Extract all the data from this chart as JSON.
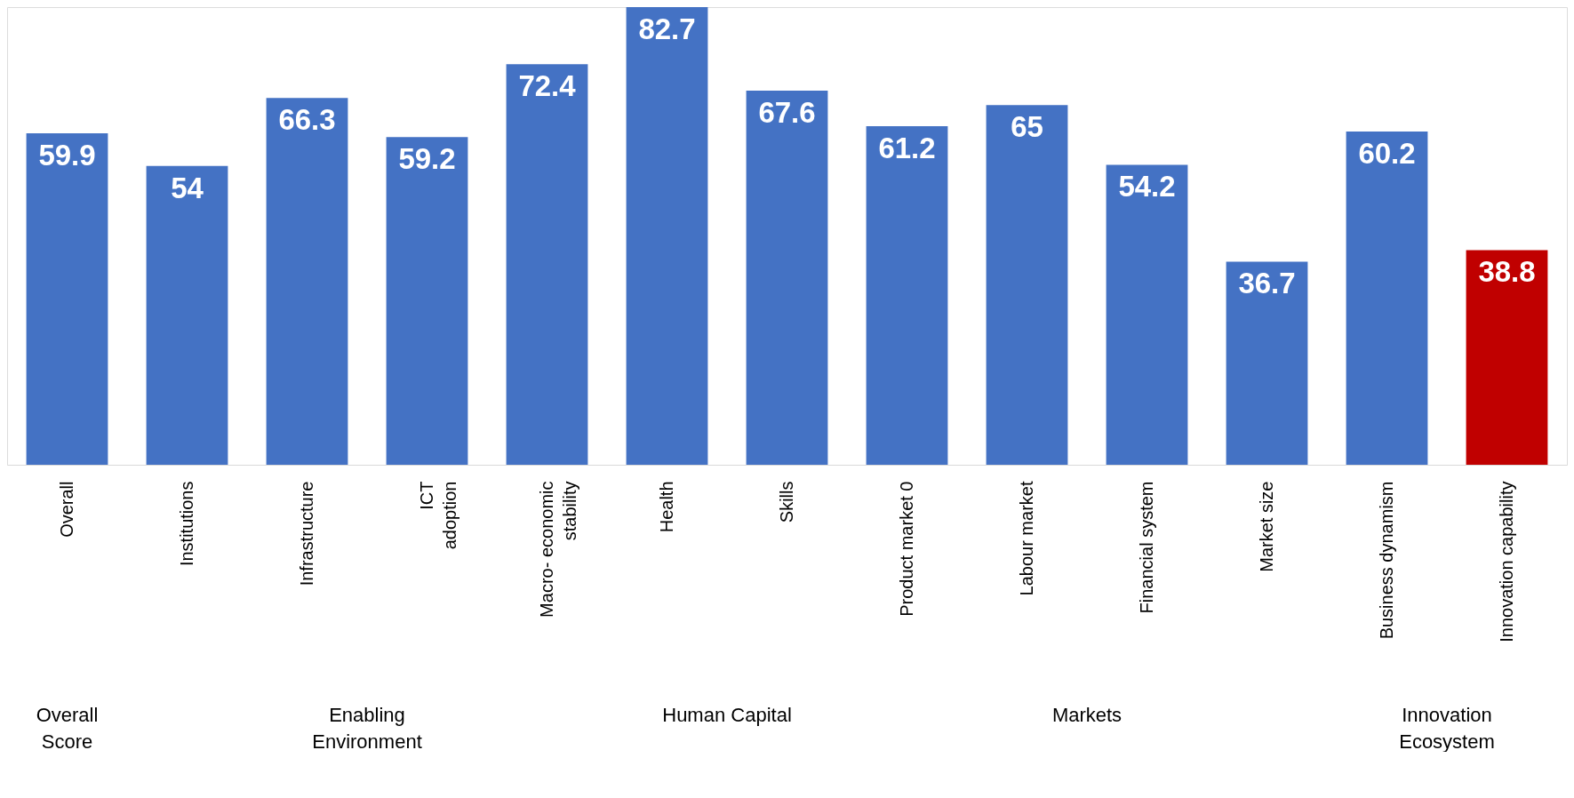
{
  "chart_data": {
    "type": "bar",
    "categories": [
      "Overall",
      "Institutions",
      "Infrastructure",
      "ICT\nadoption",
      "Macro- economic\nstability",
      "Health",
      "Skills",
      "Product market 0",
      "Labour market",
      "Financial system",
      "Market size",
      "Business dynamism",
      "Innovation capability"
    ],
    "values": [
      59.9,
      54,
      66.3,
      59.2,
      72.4,
      82.7,
      67.6,
      61.2,
      65,
      54.2,
      36.7,
      60.2,
      38.8
    ],
    "colors": [
      "#4472c4",
      "#4472c4",
      "#4472c4",
      "#4472c4",
      "#4472c4",
      "#4472c4",
      "#4472c4",
      "#4472c4",
      "#4472c4",
      "#4472c4",
      "#4472c4",
      "#4472c4",
      "#c00000"
    ],
    "data_labels": true,
    "annotations": [
      "Overall\nScore",
      "Enabling\nEnvironment",
      "Human Capital",
      "Markets",
      "Innovation\nEcosystem"
    ],
    "grid": false
  }
}
